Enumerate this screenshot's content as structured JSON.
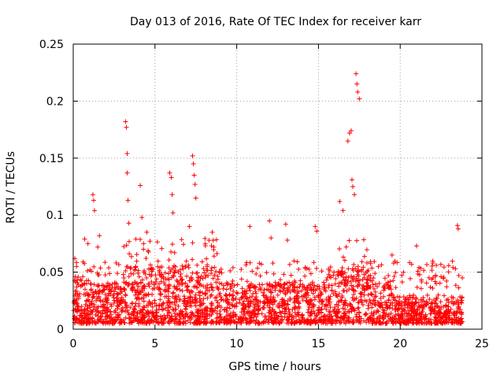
{
  "colors": {
    "series": "#ff0000",
    "grid": "#a0a0a0",
    "axis": "#000000"
  },
  "chart_data": {
    "type": "scatter",
    "title": "Day 013 of 2016, Rate Of TEC Index for receiver karr",
    "xlabel": "GPS time / hours",
    "ylabel": "ROTI / TECUs",
    "xlim": [
      0,
      25
    ],
    "ylim": [
      0,
      0.25
    ],
    "xticks": [
      0,
      5,
      10,
      15,
      20,
      25
    ],
    "yticks": [
      0,
      0.05,
      0.1,
      0.15,
      0.2,
      0.25
    ],
    "xtick_labels": [
      "0",
      "5",
      "10",
      "15",
      "20",
      "25"
    ],
    "ytick_labels": [
      "0",
      "0.05",
      "0.1",
      "0.15",
      "0.2",
      "0.25"
    ],
    "grid": true,
    "marker": "+",
    "series": [
      {
        "name": "ROTI",
        "note": "dense background band of points between ~0.005 and ~0.04 TECU/min across 0–23.8 h, plus the prominent outliers listed below",
        "band": {
          "x_start": 0,
          "x_end": 23.8,
          "y_low": 0.005,
          "y_high": 0.04,
          "count": 2400
        },
        "x": [
          0.1,
          0.2,
          0.7,
          0.9,
          1.2,
          1.25,
          1.3,
          1.5,
          1.6,
          3.2,
          3.25,
          3.3,
          3.3,
          3.35,
          3.4,
          4.1,
          4.2,
          4.3,
          4.5,
          5.9,
          6.0,
          6.05,
          6.1,
          7.1,
          7.3,
          7.35,
          7.4,
          7.45,
          7.5,
          8.5,
          8.6,
          10.8,
          12.0,
          12.1,
          13.0,
          13.1,
          14.8,
          14.9,
          16.3,
          16.5,
          16.8,
          16.9,
          17.0,
          17.05,
          17.1,
          17.2,
          17.3,
          17.35,
          17.4,
          17.5,
          19.5,
          21.0,
          22.0,
          23.5,
          23.55,
          23.8
        ],
        "y": [
          0.062,
          0.055,
          0.079,
          0.075,
          0.118,
          0.113,
          0.104,
          0.072,
          0.082,
          0.182,
          0.177,
          0.154,
          0.137,
          0.113,
          0.093,
          0.126,
          0.098,
          0.075,
          0.085,
          0.137,
          0.133,
          0.118,
          0.102,
          0.09,
          0.152,
          0.145,
          0.135,
          0.127,
          0.115,
          0.085,
          0.072,
          0.09,
          0.095,
          0.08,
          0.092,
          0.078,
          0.09,
          0.086,
          0.112,
          0.104,
          0.165,
          0.172,
          0.174,
          0.131,
          0.125,
          0.118,
          0.224,
          0.215,
          0.208,
          0.202,
          0.065,
          0.073,
          0.058,
          0.091,
          0.088,
          0.045
        ]
      }
    ]
  }
}
